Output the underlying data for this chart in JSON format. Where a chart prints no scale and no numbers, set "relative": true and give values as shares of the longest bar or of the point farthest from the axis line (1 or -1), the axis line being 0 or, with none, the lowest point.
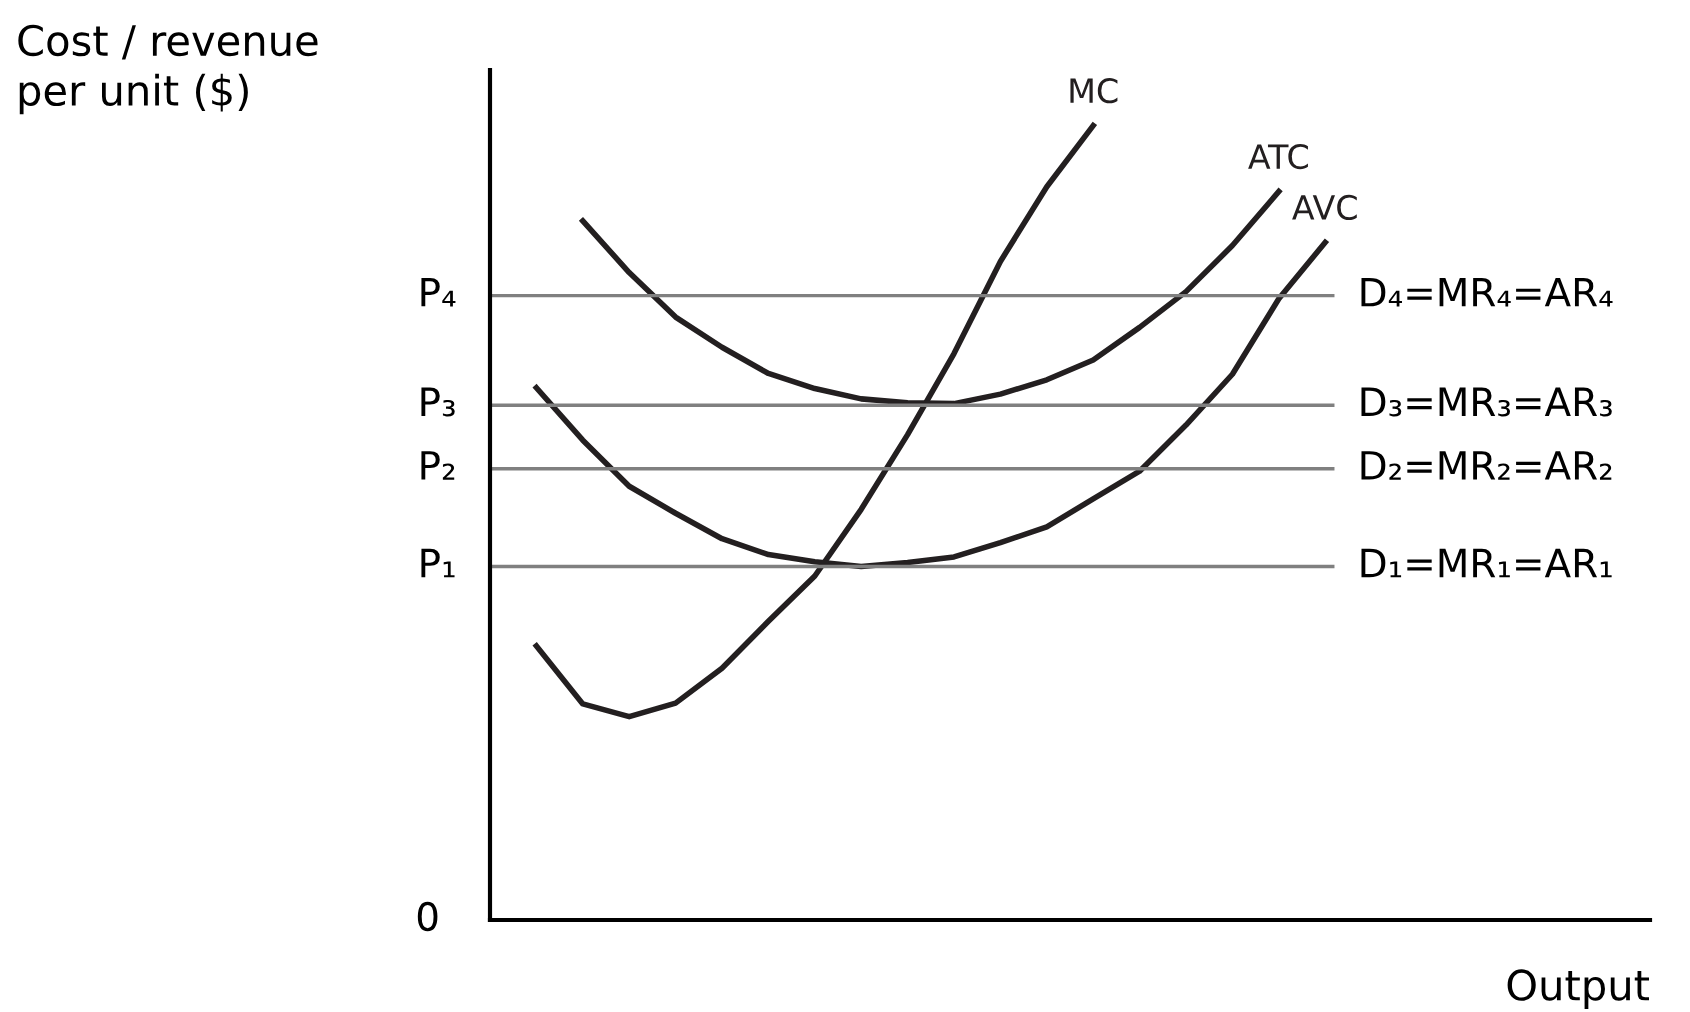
{
  "chart_data": {
    "type": "line",
    "relative": true,
    "xlabel": "Output",
    "ylabel": "Cost / revenue\nper unit ($)",
    "legend": false,
    "grid": false,
    "marker": "none",
    "line_style": "solid",
    "annotations": [
      "0",
      "P₄",
      "P₃",
      "P₂",
      "P₁"
    ],
    "categories": [
      null,
      null,
      null,
      null,
      null,
      null,
      null,
      null,
      null,
      null,
      null,
      null,
      null,
      null,
      null,
      null,
      null,
      null,
      null,
      null,
      null,
      null,
      null,
      null,
      null,
      null
    ],
    "series": [
      {
        "name": "MC",
        "color": "#231f20",
        "values": [
          null,
          0.345,
          0.272,
          0.256,
          0.273,
          0.317,
          0.376,
          0.433,
          0.517,
          0.611,
          0.713,
          0.829,
          0.923,
          1,
          null,
          null,
          null,
          null,
          null,
          null,
          null,
          null,
          null,
          null,
          null,
          null
        ]
      },
      {
        "name": "ATC",
        "color": "#231f20",
        "values": [
          null,
          null,
          0.88,
          0.815,
          0.759,
          0.721,
          0.688,
          0.669,
          0.656,
          0.651,
          0.65,
          0.662,
          0.68,
          0.705,
          0.746,
          0.791,
          0.849,
          0.917,
          null,
          null,
          null,
          null,
          null,
          null,
          null,
          null
        ]
      },
      {
        "name": "AVC",
        "color": "#231f20",
        "values": [
          null,
          0.67,
          0.604,
          0.546,
          0.512,
          0.48,
          0.46,
          0.451,
          0.445,
          0.45,
          0.457,
          0.475,
          0.495,
          0.53,
          0.565,
          0.623,
          0.687,
          0.782,
          0.853,
          null,
          null,
          null,
          null,
          null,
          null,
          null
        ]
      }
    ],
    "ref_lines": [
      {
        "axis": "y",
        "value": 0.786,
        "label": "D₄=MR₄=AR₄",
        "color": "#808080"
      },
      {
        "axis": "y",
        "value": 0.648,
        "label": "D₃=MR₃=AR₃",
        "color": "#808080"
      },
      {
        "axis": "y",
        "value": 0.568,
        "label": "D₂=MR₂=AR₂",
        "color": "#808080"
      },
      {
        "axis": "y",
        "value": 0.445,
        "label": "D₁=MR₁=AR₁",
        "color": "#808080"
      }
    ]
  }
}
